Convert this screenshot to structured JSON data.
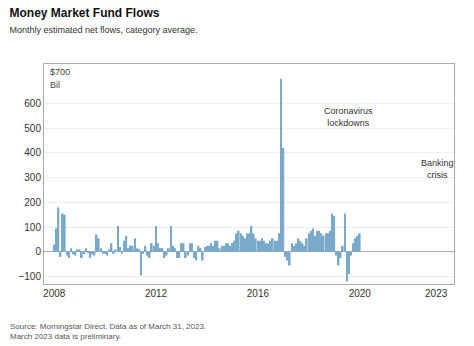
{
  "chart_data": {
    "type": "bar",
    "title": "Money Market Fund Flows",
    "subtitle": "Monthly estimated net flows, category average.",
    "source": "Source: Morningstar Direct. Data as of March 31, 2023.\nMarch 2023 data is preliminary.",
    "annotations": [
      "$700",
      "Bil",
      "Coronavirus\nlockdowns",
      "Banking\ncrisis"
    ],
    "color": "#7aaaca",
    "grid": true,
    "xlim": [
      2007.6,
      2023.7
    ],
    "xticks": [
      2008,
      2012,
      2016,
      2020,
      2023
    ],
    "ylim": [
      -130,
      760
    ],
    "yticks": [
      {
        "value": -100,
        "label": "−100"
      },
      0,
      100,
      200,
      300,
      400,
      500,
      600
    ],
    "x": [
      2008,
      2008.0833,
      2008.1667,
      2008.25,
      2008.3333,
      2008.4167,
      2008.5,
      2008.5833,
      2008.6667,
      2008.75,
      2008.8333,
      2008.9167,
      2009,
      2009.0833,
      2009.1667,
      2009.25,
      2009.3333,
      2009.4167,
      2009.5,
      2009.5833,
      2009.6667,
      2009.75,
      2009.8333,
      2009.9167,
      2010,
      2010.0833,
      2010.1667,
      2010.25,
      2010.3333,
      2010.4167,
      2010.5,
      2010.5833,
      2010.6667,
      2010.75,
      2010.8333,
      2010.9167,
      2011,
      2011.0833,
      2011.1667,
      2011.25,
      2011.3333,
      2011.4167,
      2011.5,
      2011.5833,
      2011.6667,
      2011.75,
      2011.8333,
      2011.9167,
      2012,
      2012.0833,
      2012.1667,
      2012.25,
      2012.3333,
      2012.4167,
      2012.5,
      2012.5833,
      2012.6667,
      2012.75,
      2012.8333,
      2012.9167,
      2013,
      2013.0833,
      2013.1667,
      2013.25,
      2013.3333,
      2013.4167,
      2013.5,
      2013.5833,
      2013.6667,
      2013.75,
      2013.8333,
      2013.9167,
      2014,
      2014.0833,
      2014.1667,
      2014.25,
      2014.3333,
      2014.4167,
      2014.5,
      2014.5833,
      2014.6667,
      2014.75,
      2014.8333,
      2014.9167,
      2015,
      2015.0833,
      2015.1667,
      2015.25,
      2015.3333,
      2015.4167,
      2015.5,
      2015.5833,
      2015.6667,
      2015.75,
      2015.8333,
      2015.9167,
      2016,
      2016.0833,
      2016.1667,
      2016.25,
      2016.3333,
      2016.4167,
      2016.5,
      2016.5833,
      2016.6667,
      2016.75,
      2016.8333,
      2016.9167,
      2017,
      2017.0833,
      2017.1667,
      2017.25,
      2017.3333,
      2017.4167,
      2017.5,
      2017.5833,
      2017.6667,
      2017.75,
      2017.8333,
      2017.9167,
      2018,
      2018.0833,
      2018.1667,
      2018.25,
      2018.3333,
      2018.4167,
      2018.5,
      2018.5833,
      2018.6667,
      2018.75,
      2018.8333,
      2018.9167,
      2019,
      2019.0833,
      2019.1667,
      2019.25,
      2019.3333,
      2019.4167,
      2019.5,
      2019.5833,
      2019.6667,
      2019.75,
      2019.8333,
      2019.9167,
      2020
    ],
    "values": [
      30,
      95,
      180,
      -20,
      155,
      150,
      -15,
      -25,
      15,
      -10,
      -15,
      10,
      10,
      -25,
      -10,
      15,
      -5,
      -25,
      -10,
      -15,
      70,
      55,
      15,
      -8,
      -8,
      -15,
      10,
      35,
      -8,
      10,
      105,
      20,
      -8,
      45,
      65,
      15,
      25,
      25,
      55,
      15,
      12,
      -95,
      -8,
      25,
      -15,
      -25,
      35,
      25,
      105,
      35,
      15,
      15,
      -25,
      -15,
      15,
      105,
      25,
      15,
      -25,
      -25,
      35,
      35,
      -25,
      -15,
      35,
      35,
      -25,
      -35,
      25,
      15,
      -35,
      20,
      25,
      25,
      35,
      25,
      45,
      45,
      15,
      25,
      25,
      35,
      35,
      25,
      35,
      45,
      75,
      85,
      75,
      65,
      55,
      75,
      75,
      105,
      75,
      55,
      45,
      45,
      55,
      45,
      35,
      35,
      45,
      55,
      45,
      45,
      75,
      700,
      420,
      -20,
      -35,
      -55,
      35,
      25,
      35,
      55,
      45,
      35,
      25,
      55,
      75,
      85,
      95,
      65,
      85,
      85,
      75,
      65,
      75,
      75,
      85,
      155,
      145,
      -15,
      -55,
      -25,
      25,
      155,
      -120,
      -90,
      -15,
      35,
      55,
      65,
      75
    ]
  }
}
